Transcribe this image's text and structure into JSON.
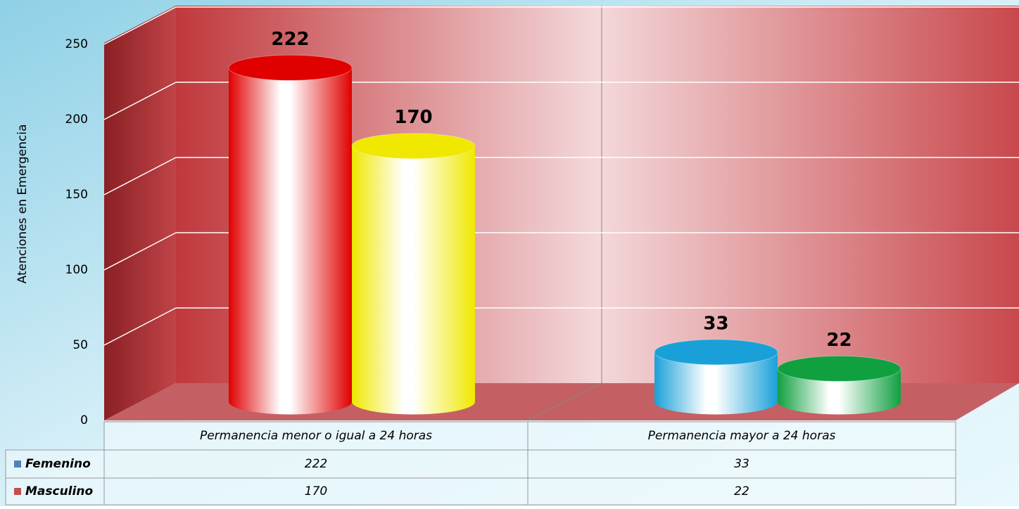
{
  "chart_data": {
    "type": "bar3d",
    "y_label": "Atenciones en Emergencia",
    "categories": [
      "Permanencia menor o igual a 24 horas",
      "Permanencia mayor a 24 horas"
    ],
    "series": [
      {
        "name": "Femenino",
        "color": "#4f81bd",
        "colors": [
          "#e00000",
          "#1aa0d8"
        ],
        "values": [
          222,
          33
        ]
      },
      {
        "name": "Masculino",
        "color": "#c0504d",
        "colors": [
          "#f0e800",
          "#10a040"
        ],
        "values": [
          170,
          22
        ]
      }
    ],
    "ylim": [
      0,
      250
    ],
    "yticks": [
      0,
      50,
      100,
      150,
      200,
      250
    ],
    "grid": true,
    "data_table": true
  }
}
